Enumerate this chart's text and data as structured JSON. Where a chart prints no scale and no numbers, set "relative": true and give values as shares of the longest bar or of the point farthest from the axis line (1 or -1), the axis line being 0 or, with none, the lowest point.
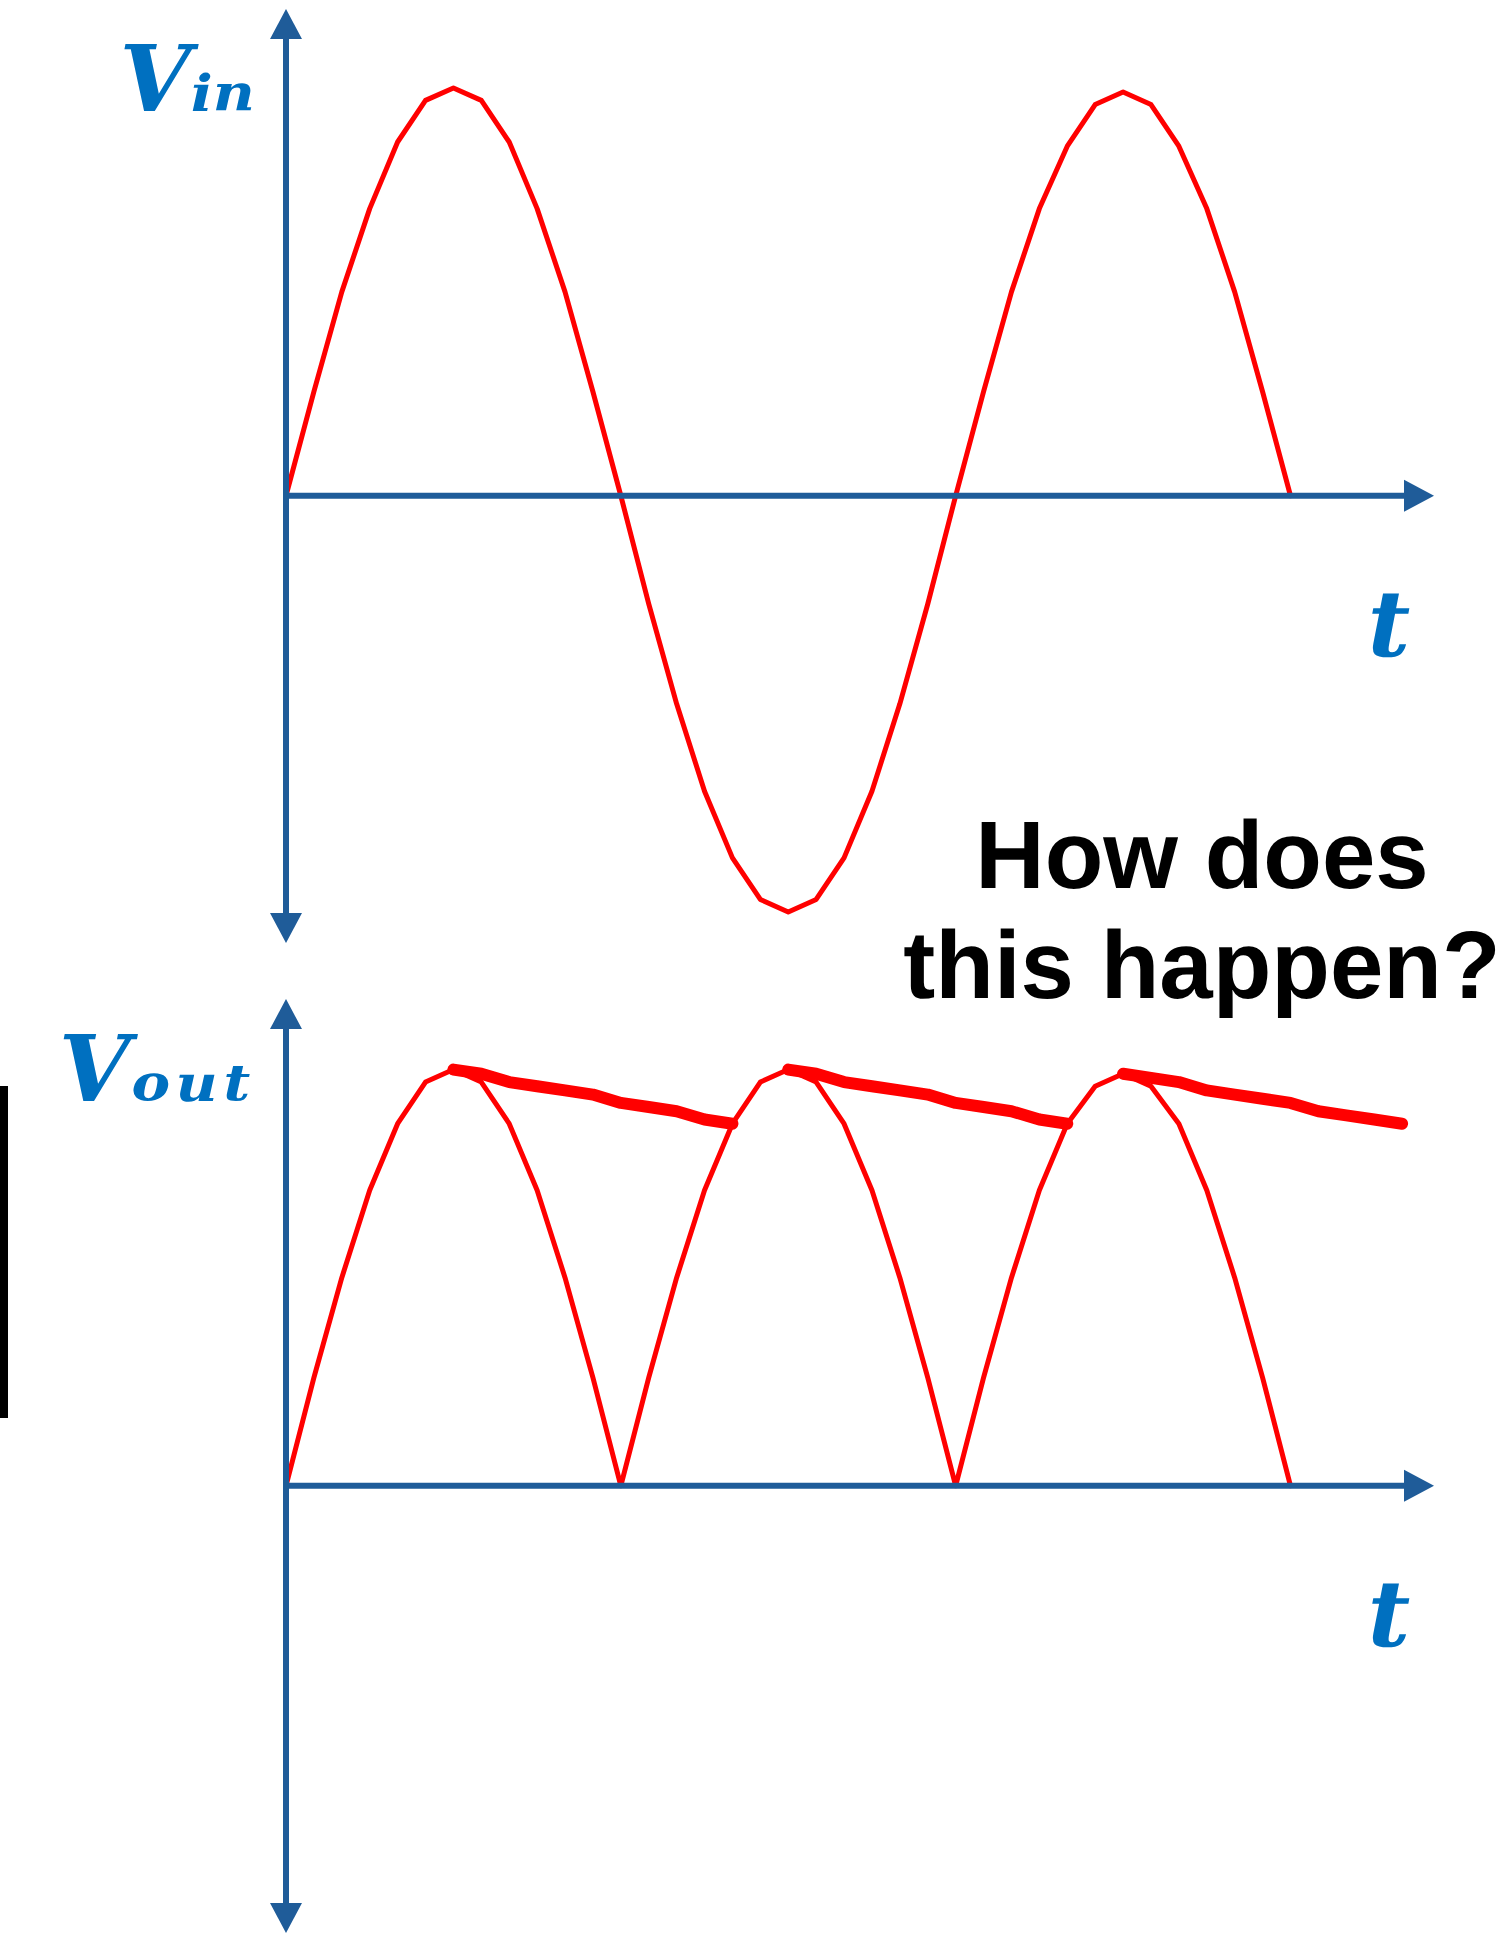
{
  "chart_data": [
    {
      "type": "line",
      "relative": true,
      "ylabel": "Vᵢₙ",
      "xlabel": "t",
      "ref_lines": [
        {
          "axis": "y",
          "value": 0,
          "color": "#1f5c99"
        }
      ],
      "categories": [
        null,
        null,
        null,
        null,
        null,
        null,
        null,
        null,
        null,
        null,
        null,
        null,
        null,
        null,
        null,
        null,
        null,
        null,
        null,
        null,
        null,
        null,
        null,
        null,
        null,
        null,
        null,
        null,
        null,
        null,
        null,
        null,
        null,
        null,
        null,
        null,
        null,
        null,
        null,
        null,
        null,
        null
      ],
      "series": [
        {
          "color": "#ff0000",
          "values": [
            0,
            0.25,
            0.49,
            0.69,
            0.85,
            0.95,
            0.98,
            0.95,
            0.85,
            0.69,
            0.49,
            0.25,
            0,
            -0.26,
            -0.5,
            -0.71,
            -0.87,
            -0.97,
            -1,
            -0.97,
            -0.87,
            -0.71,
            -0.5,
            -0.26,
            0,
            0.25,
            0.49,
            0.69,
            0.84,
            0.94,
            0.97,
            0.94,
            0.84,
            0.69,
            0.49,
            0.25,
            0,
            null,
            null,
            null,
            null,
            null
          ]
        }
      ]
    },
    {
      "type": "line",
      "relative": true,
      "ylabel": "Vₒᵤₜ",
      "xlabel": "t",
      "annotations": [
        "How does this happen?"
      ],
      "ref_lines": [
        {
          "axis": "y",
          "value": 0,
          "color": "#1f5c99"
        }
      ],
      "categories": [
        null,
        null,
        null,
        null,
        null,
        null,
        null,
        null,
        null,
        null,
        null,
        null,
        null,
        null,
        null,
        null,
        null,
        null,
        null,
        null,
        null,
        null,
        null,
        null,
        null,
        null,
        null,
        null,
        null,
        null,
        null,
        null,
        null,
        null,
        null,
        null,
        null,
        null,
        null,
        null,
        null,
        null
      ],
      "series": [
        {
          "color": "#ff0000",
          "values": [
            0,
            0.26,
            0.5,
            0.71,
            0.87,
            0.97,
            1,
            0.97,
            0.87,
            0.71,
            0.5,
            0.26,
            0,
            0.26,
            0.5,
            0.71,
            0.87,
            0.97,
            1,
            0.97,
            0.87,
            0.71,
            0.5,
            0.26,
            0,
            0.26,
            0.5,
            0.71,
            0.87,
            0.96,
            0.99,
            0.96,
            0.87,
            0.71,
            0.5,
            0.26,
            0,
            null,
            null,
            null,
            null,
            null
          ]
        },
        {
          "color": "#ff0000",
          "values": [
            null,
            null,
            null,
            null,
            null,
            null,
            1,
            0.99,
            0.97,
            0.96,
            0.95,
            0.94,
            0.92,
            0.91,
            0.9,
            0.88,
            0.87,
            null,
            null,
            null,
            null,
            null,
            null,
            null,
            null,
            null,
            null,
            null,
            null,
            null,
            null,
            null,
            null,
            null,
            null,
            null,
            null,
            null,
            null,
            null,
            null,
            null
          ]
        },
        {
          "color": "#ff0000",
          "values": [
            null,
            null,
            null,
            null,
            null,
            null,
            null,
            null,
            null,
            null,
            null,
            null,
            null,
            null,
            null,
            null,
            null,
            null,
            1,
            0.99,
            0.97,
            0.96,
            0.95,
            0.94,
            0.92,
            0.91,
            0.9,
            0.88,
            0.87,
            null,
            null,
            null,
            null,
            null,
            null,
            null,
            null,
            null,
            null,
            null,
            null,
            null
          ]
        },
        {
          "color": "#ff0000",
          "values": [
            null,
            null,
            null,
            null,
            null,
            null,
            null,
            null,
            null,
            null,
            null,
            null,
            null,
            null,
            null,
            null,
            null,
            null,
            null,
            null,
            null,
            null,
            null,
            null,
            null,
            null,
            null,
            null,
            null,
            null,
            0.99,
            0.98,
            0.97,
            0.95,
            0.94,
            0.93,
            0.92,
            0.9,
            0.89,
            0.88,
            0.87,
            null
          ]
        }
      ]
    }
  ]
}
